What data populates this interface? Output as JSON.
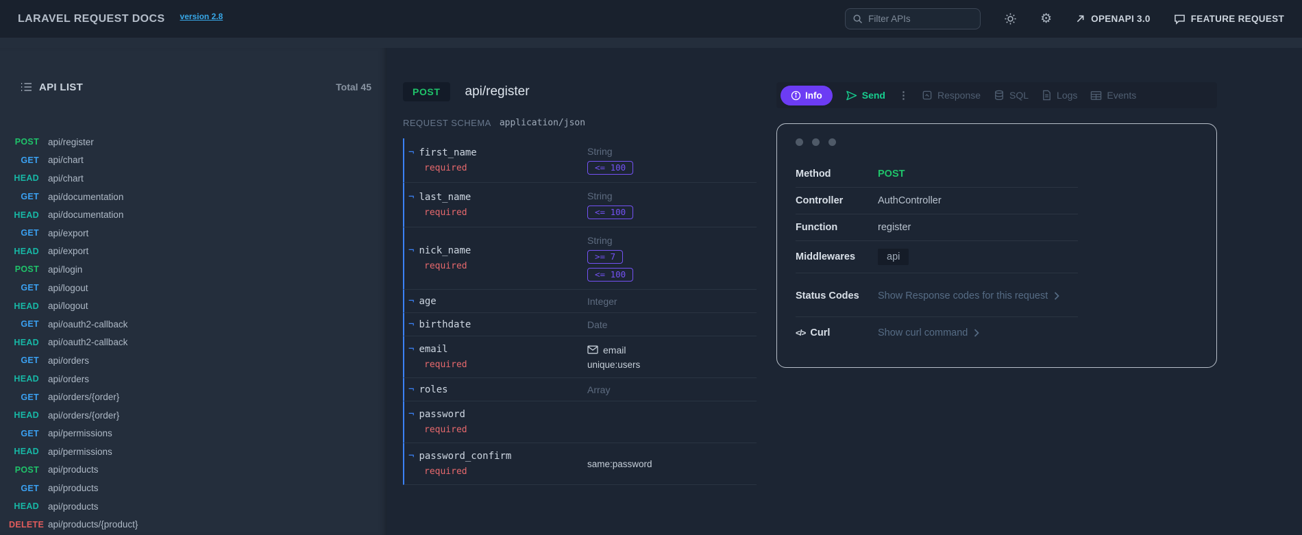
{
  "topbar": {
    "title": "LARAVEL REQUEST DOCS",
    "version_link": "version 2.8",
    "search_placeholder": "Filter APIs",
    "openapi_label": "OPENAPI 3.0",
    "feature_request_label": "FEATURE REQUEST"
  },
  "sidebar": {
    "header": "API LIST",
    "total": "Total 45",
    "items": [
      {
        "method": "POST",
        "path": "api/register"
      },
      {
        "method": "GET",
        "path": "api/chart"
      },
      {
        "method": "HEAD",
        "path": "api/chart"
      },
      {
        "method": "GET",
        "path": "api/documentation"
      },
      {
        "method": "HEAD",
        "path": "api/documentation"
      },
      {
        "method": "GET",
        "path": "api/export"
      },
      {
        "method": "HEAD",
        "path": "api/export"
      },
      {
        "method": "POST",
        "path": "api/login"
      },
      {
        "method": "GET",
        "path": "api/logout"
      },
      {
        "method": "HEAD",
        "path": "api/logout"
      },
      {
        "method": "GET",
        "path": "api/oauth2-callback"
      },
      {
        "method": "HEAD",
        "path": "api/oauth2-callback"
      },
      {
        "method": "GET",
        "path": "api/orders"
      },
      {
        "method": "HEAD",
        "path": "api/orders"
      },
      {
        "method": "GET",
        "path": "api/orders/{order}"
      },
      {
        "method": "HEAD",
        "path": "api/orders/{order}"
      },
      {
        "method": "GET",
        "path": "api/permissions"
      },
      {
        "method": "HEAD",
        "path": "api/permissions"
      },
      {
        "method": "POST",
        "path": "api/products"
      },
      {
        "method": "GET",
        "path": "api/products"
      },
      {
        "method": "HEAD",
        "path": "api/products"
      },
      {
        "method": "DELETE",
        "path": "api/products/{product}"
      }
    ]
  },
  "endpoint": {
    "method": "POST",
    "path": "api/register",
    "schema_label": "REQUEST SCHEMA",
    "content_type": "application/json",
    "required_label": "required",
    "field_prefix_glyph": "¬",
    "fields": [
      {
        "name": "first_name",
        "required": true,
        "type": "String",
        "type_tone": "muted",
        "badges": [
          "<= 100"
        ]
      },
      {
        "name": "last_name",
        "required": true,
        "type": "String",
        "type_tone": "muted",
        "badges": [
          "<= 100"
        ]
      },
      {
        "name": "nick_name",
        "required": true,
        "type": "String",
        "type_tone": "muted",
        "badges": [
          ">= 7",
          "<= 100"
        ]
      },
      {
        "name": "age",
        "required": false,
        "type": "Integer",
        "type_tone": "muted"
      },
      {
        "name": "birthdate",
        "required": false,
        "type": "Date",
        "type_tone": "muted"
      },
      {
        "name": "email",
        "required": true,
        "type": "email",
        "type_tone": "light",
        "type_icon": "envelope-icon",
        "rules": [
          "unique:users"
        ]
      },
      {
        "name": "roles",
        "required": false,
        "type": "Array",
        "type_tone": "muted"
      },
      {
        "name": "password",
        "required": true
      },
      {
        "name": "password_confirm",
        "required": true,
        "rules": [
          "same:password"
        ]
      }
    ]
  },
  "toolbar": {
    "info_label": "Info",
    "send_label": "Send",
    "menu_glyph": "⋮",
    "response_label": "Response",
    "sql_label": "SQL",
    "logs_label": "Logs",
    "events_label": "Events"
  },
  "details": {
    "rows": [
      {
        "label": "Method",
        "value": "POST",
        "value_style": "method"
      },
      {
        "label": "Controller",
        "value": "AuthController",
        "value_style": "plain"
      },
      {
        "label": "Function",
        "value": "register",
        "value_style": "plain"
      },
      {
        "label": "Middlewares",
        "value": "api",
        "value_style": "badge"
      }
    ],
    "status_codes_label": "Status Codes",
    "status_codes_link": "Show Response codes for this request",
    "curl_label": "Curl",
    "curl_glyph": "</>",
    "curl_link": "Show curl command"
  },
  "colors": {
    "topbar_bg": "#19212d",
    "sidebar_bg": "#242e3c",
    "content_bg": "#1c2533",
    "post_green": "#1fc36a",
    "get_blue": "#3ba1f2",
    "head_teal": "#17b8a6",
    "delete_red": "#e25c5c",
    "required_red": "#e8696d",
    "rule_purple": "#7452f5",
    "info_button_purple": "#6c3cf4",
    "send_green": "#17ce8e",
    "field_border_blue": "#3b82f6",
    "version_link_cyan": "#38a8e8",
    "card_border": "#b8c0ca"
  }
}
